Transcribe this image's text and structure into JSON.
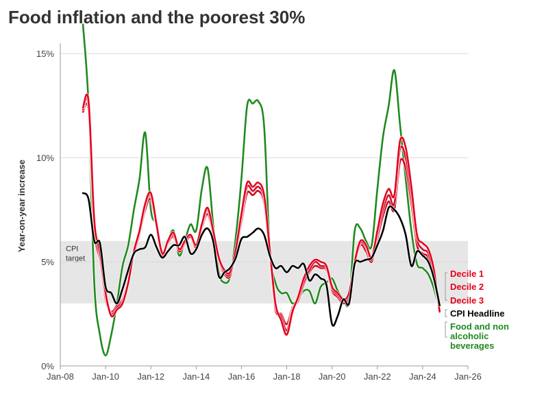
{
  "chart_data": {
    "type": "line",
    "title": "Food inflation and the poorest 30%",
    "xlabel": "",
    "ylabel": "Year-on-year increase",
    "xlim": [
      2008.0,
      2026.0
    ],
    "ylim": [
      0,
      15.5
    ],
    "x_ticks": [
      {
        "value": 2008,
        "label": "Jan-08"
      },
      {
        "value": 2010,
        "label": "Jan-10"
      },
      {
        "value": 2012,
        "label": "Jan-12"
      },
      {
        "value": 2014,
        "label": "Jan-14"
      },
      {
        "value": 2016,
        "label": "Jan-16"
      },
      {
        "value": 2018,
        "label": "Jan-18"
      },
      {
        "value": 2020,
        "label": "Jan-20"
      },
      {
        "value": 2022,
        "label": "Jan-22"
      },
      {
        "value": 2024,
        "label": "Jan-24"
      },
      {
        "value": 2026,
        "label": "Jan-26"
      }
    ],
    "y_ticks": [
      {
        "value": 0,
        "label": "0%"
      },
      {
        "value": 5,
        "label": "5%"
      },
      {
        "value": 10,
        "label": "10%"
      },
      {
        "value": 15,
        "label": "15%"
      }
    ],
    "target_band": {
      "low": 3,
      "high": 6,
      "label_line1": "CPI",
      "label_line2": "target"
    },
    "x": [
      2009.0,
      2009.25,
      2009.5,
      2009.75,
      2010.0,
      2010.25,
      2010.5,
      2010.75,
      2011.0,
      2011.25,
      2011.5,
      2011.75,
      2012.0,
      2012.25,
      2012.5,
      2012.75,
      2013.0,
      2013.25,
      2013.5,
      2013.75,
      2014.0,
      2014.25,
      2014.5,
      2014.75,
      2015.0,
      2015.25,
      2015.5,
      2015.75,
      2016.0,
      2016.25,
      2016.5,
      2016.75,
      2017.0,
      2017.25,
      2017.5,
      2017.75,
      2018.0,
      2018.25,
      2018.5,
      2018.75,
      2019.0,
      2019.25,
      2019.5,
      2019.75,
      2020.0,
      2020.25,
      2020.5,
      2020.75,
      2021.0,
      2021.25,
      2021.5,
      2021.75,
      2022.0,
      2022.25,
      2022.5,
      2022.75,
      2023.0,
      2023.25,
      2023.5,
      2023.75,
      2024.0,
      2024.25,
      2024.5,
      2024.75
    ],
    "series": [
      {
        "name": "Decile 1",
        "color": "#e3001b",
        "width": 2.6,
        "values": [
          12.4,
          12.7,
          7.0,
          5.5,
          3.5,
          2.4,
          2.7,
          3.0,
          4.0,
          5.5,
          6.5,
          7.8,
          8.3,
          6.8,
          5.4,
          6.0,
          6.4,
          5.6,
          6.0,
          6.3,
          5.8,
          6.8,
          7.6,
          6.5,
          5.2,
          4.6,
          4.5,
          5.6,
          7.3,
          8.8,
          8.6,
          8.8,
          8.2,
          5.6,
          3.0,
          2.2,
          1.5,
          2.6,
          3.3,
          4.2,
          4.8,
          5.1,
          5.0,
          4.8,
          3.8,
          3.5,
          3.2,
          3.5,
          5.0,
          6.0,
          5.8,
          5.2,
          6.5,
          7.8,
          8.5,
          8.2,
          10.8,
          10.5,
          8.6,
          6.3,
          5.9,
          5.6,
          4.6,
          2.6
        ]
      },
      {
        "name": "Decile 2",
        "color": "#c8102e",
        "width": 2.6,
        "values": [
          12.3,
          12.5,
          6.8,
          5.3,
          3.4,
          2.5,
          2.8,
          3.1,
          4.0,
          5.4,
          6.4,
          7.7,
          8.2,
          6.7,
          5.4,
          6.0,
          6.3,
          5.6,
          6.0,
          6.3,
          5.8,
          6.7,
          7.5,
          6.4,
          5.2,
          4.5,
          4.4,
          5.5,
          7.1,
          8.6,
          8.4,
          8.6,
          8.0,
          5.4,
          2.9,
          2.4,
          1.7,
          2.7,
          3.2,
          4.0,
          4.6,
          5.0,
          4.8,
          4.7,
          3.7,
          3.4,
          3.1,
          3.4,
          4.9,
          5.9,
          5.7,
          5.1,
          6.3,
          7.5,
          8.2,
          7.8,
          10.4,
          10.0,
          8.2,
          6.1,
          5.6,
          5.4,
          4.3,
          2.6
        ]
      },
      {
        "name": "Decile 3",
        "color": "#d6001c",
        "width": 2.6,
        "values": [
          12.2,
          12.2,
          6.6,
          5.1,
          3.2,
          2.6,
          2.9,
          3.2,
          4.1,
          5.3,
          6.3,
          7.5,
          8.0,
          6.6,
          5.3,
          5.9,
          6.2,
          5.5,
          5.9,
          6.2,
          5.7,
          6.6,
          7.3,
          6.3,
          5.1,
          4.4,
          4.3,
          5.4,
          6.9,
          8.3,
          8.2,
          8.4,
          7.8,
          5.2,
          2.7,
          2.5,
          2.0,
          2.8,
          3.1,
          3.9,
          4.5,
          4.8,
          4.7,
          4.6,
          3.6,
          3.3,
          3.0,
          3.3,
          4.8,
          5.8,
          5.5,
          5.0,
          6.1,
          7.2,
          7.9,
          7.5,
          9.8,
          9.5,
          7.8,
          5.8,
          5.4,
          5.2,
          4.1,
          2.6
        ]
      },
      {
        "name": "CPI Headline",
        "color": "#000000",
        "width": 2.6,
        "values": [
          8.3,
          8.0,
          6.0,
          5.9,
          3.8,
          3.5,
          3.0,
          3.7,
          4.6,
          5.4,
          5.6,
          5.7,
          6.3,
          5.7,
          5.2,
          5.5,
          5.8,
          5.8,
          6.2,
          5.4,
          5.6,
          6.3,
          6.6,
          6.0,
          4.3,
          4.5,
          4.7,
          5.2,
          6.1,
          6.2,
          6.4,
          6.6,
          6.3,
          5.3,
          4.7,
          4.8,
          4.5,
          4.8,
          4.7,
          4.9,
          4.1,
          4.4,
          4.2,
          3.9,
          2.0,
          2.4,
          3.2,
          3.0,
          4.9,
          5.0,
          5.1,
          5.2,
          5.8,
          6.5,
          7.6,
          7.5,
          7.1,
          6.3,
          4.8,
          5.5,
          5.3,
          5.0,
          4.2,
          2.9
        ]
      },
      {
        "name": "Food and non alcoholic beverages",
        "color": "#1e8a1e",
        "width": 2.6,
        "values": [
          16.4,
          12.5,
          4.0,
          1.5,
          0.5,
          1.5,
          3.0,
          4.8,
          5.8,
          7.5,
          9.0,
          11.2,
          7.5,
          6.8,
          5.5,
          6.0,
          6.5,
          5.3,
          6.0,
          6.8,
          6.5,
          8.5,
          9.5,
          6.8,
          4.5,
          4.0,
          4.3,
          6.2,
          9.0,
          12.5,
          12.6,
          12.7,
          11.5,
          5.6,
          4.0,
          3.5,
          3.5,
          3.0,
          3.2,
          3.6,
          3.6,
          3.0,
          3.8,
          4.0,
          4.2,
          3.6,
          3.2,
          3.1,
          6.5,
          6.6,
          6.0,
          5.8,
          8.5,
          11.0,
          12.5,
          14.2,
          11.6,
          9.0,
          6.5,
          4.9,
          4.7,
          4.4,
          3.7,
          2.6
        ]
      }
    ],
    "legend": [
      {
        "lines": [
          "Decile 1"
        ],
        "color": "#e3001b"
      },
      {
        "lines": [
          "Decile 2"
        ],
        "color": "#e3001b"
      },
      {
        "lines": [
          "Decile 3"
        ],
        "color": "#e3001b"
      },
      {
        "lines": [
          "CPI Headline"
        ],
        "color": "#000000"
      },
      {
        "lines": [
          "Food and non",
          "alcoholic",
          "beverages"
        ],
        "color": "#1e8a1e"
      }
    ]
  }
}
